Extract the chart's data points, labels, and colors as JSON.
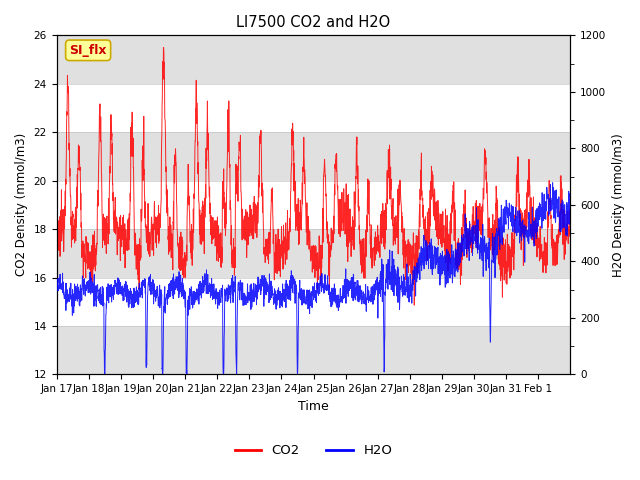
{
  "title": "LI7500 CO2 and H2O",
  "xlabel": "Time",
  "ylabel_left": "CO2 Density (mmol/m3)",
  "ylabel_right": "H2O Density (mmol/m3)",
  "ylim_left": [
    12,
    26
  ],
  "ylim_right": [
    0,
    1200
  ],
  "yticks_left": [
    12,
    14,
    16,
    18,
    20,
    22,
    24,
    26
  ],
  "yticks_right": [
    0,
    200,
    400,
    600,
    800,
    1000,
    1200
  ],
  "xtick_labels": [
    "Jan 17",
    "Jan 18",
    "Jan 19",
    "Jan 20",
    "Jan 21",
    "Jan 22",
    "Jan 23",
    "Jan 24",
    "Jan 25",
    "Jan 26",
    "Jan 27",
    "Jan 28",
    "Jan 29",
    "Jan 30",
    "Jan 31",
    "Feb 1"
  ],
  "co2_color": "#FF0000",
  "h2o_color": "#0000FF",
  "background_color": "#FFFFFF",
  "band_color": "#E0E0E0",
  "legend_label_co2": "CO2",
  "legend_label_h2o": "H2O",
  "watermark_text": "SI_flx",
  "watermark_bg": "#FFFF99",
  "watermark_border": "#CCAA00",
  "n_days": 16,
  "pts_per_day": 144,
  "figsize": [
    6.4,
    4.8
  ],
  "dpi": 100
}
